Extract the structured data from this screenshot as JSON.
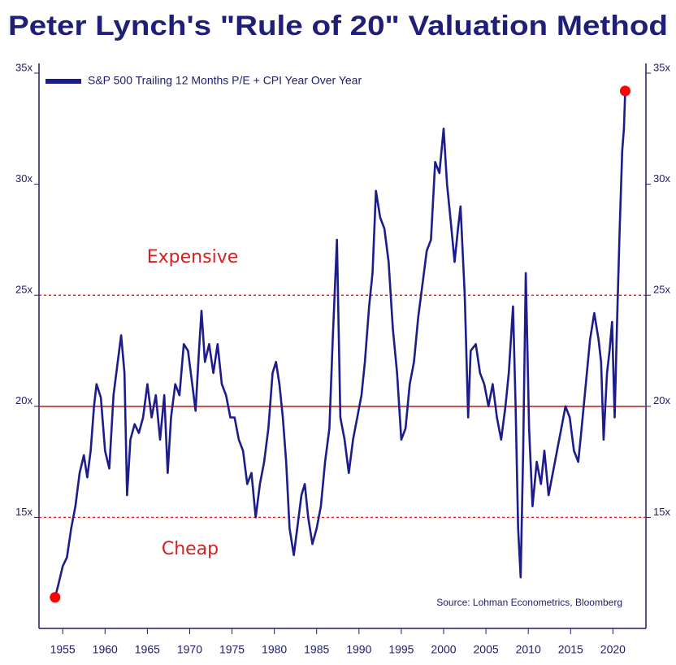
{
  "chart_data": {
    "type": "line",
    "title": "Peter Lynch's \"Rule of 20\" Valuation Method",
    "source": "Source: Lohman Econometrics, Bloomberg",
    "annotations": [
      "Expensive",
      "Cheap"
    ],
    "x": [
      1954.1,
      1954.5,
      1955,
      1955.5,
      1956,
      1956.5,
      1957,
      1957.5,
      1957.9,
      1958.3,
      1958.7,
      1959,
      1959.5,
      1960,
      1960.5,
      1961,
      1961.5,
      1961.9,
      1962.3,
      1962.6,
      1963,
      1963.5,
      1964,
      1964.5,
      1965,
      1965.5,
      1966,
      1966.5,
      1967,
      1967.4,
      1967.8,
      1968.3,
      1968.8,
      1969.3,
      1969.8,
      1970.3,
      1970.7,
      1971.1,
      1971.4,
      1971.8,
      1972.3,
      1972.8,
      1973.3,
      1973.8,
      1974.3,
      1974.8,
      1975.3,
      1975.8,
      1976.3,
      1976.8,
      1977.3,
      1977.8,
      1978.3,
      1978.8,
      1979.3,
      1979.8,
      1980.2,
      1980.6,
      1981,
      1981.4,
      1981.8,
      1982.3,
      1982.7,
      1983.2,
      1983.6,
      1984,
      1984.5,
      1985,
      1985.5,
      1986,
      1986.5,
      1986.9,
      1987.4,
      1987.8,
      1988.3,
      1988.8,
      1989.3,
      1989.8,
      1990.3,
      1990.7,
      1991.2,
      1991.6,
      1992,
      1992.5,
      1993,
      1993.5,
      1994,
      1994.5,
      1995,
      1995.5,
      1996,
      1996.5,
      1997,
      1997.5,
      1998,
      1998.5,
      1999,
      1999.5,
      2000,
      2000.4,
      2000.8,
      2001.3,
      2001.7,
      2002,
      2002.5,
      2002.9,
      2003.2,
      2003.8,
      2004.3,
      2004.8,
      2005.3,
      2005.8,
      2006.3,
      2006.8,
      2007.3,
      2007.7,
      2008.2,
      2008.5,
      2008.8,
      2009.1,
      2009.4,
      2009.7,
      2010.1,
      2010.5,
      2011,
      2011.5,
      2011.9,
      2012.4,
      2012.9,
      2013.4,
      2013.9,
      2014.4,
      2014.9,
      2015.4,
      2015.9,
      2016.3,
      2016.8,
      2017.3,
      2017.8,
      2018.3,
      2018.6,
      2018.9,
      2019.3,
      2019.6,
      2019.9,
      2020.2,
      2020.5,
      2020.8,
      2021.1,
      2021.3,
      2021.45
    ],
    "series": [
      {
        "name": "S&P 500 Trailing 12 Months P/E + CPI Year Over Year",
        "color": "#1c1c8a",
        "values": [
          11.4,
          12.0,
          12.8,
          13.2,
          14.5,
          15.5,
          17.0,
          17.8,
          16.8,
          18.0,
          20.0,
          21.0,
          20.4,
          18.0,
          17.2,
          20.5,
          22.0,
          23.2,
          21.5,
          16.0,
          18.5,
          19.2,
          18.8,
          19.5,
          21.0,
          19.5,
          20.5,
          18.5,
          20.5,
          17.0,
          19.5,
          21.0,
          20.5,
          22.8,
          22.5,
          21.0,
          19.8,
          22.5,
          24.3,
          22.0,
          22.8,
          21.5,
          22.8,
          21.0,
          20.5,
          19.5,
          19.5,
          18.5,
          18.0,
          16.5,
          17.0,
          15.0,
          16.5,
          17.5,
          19.0,
          21.5,
          22.0,
          21.0,
          19.5,
          17.5,
          14.5,
          13.3,
          14.5,
          16.0,
          16.5,
          15.0,
          13.8,
          14.5,
          15.5,
          17.5,
          19.0,
          23.0,
          27.5,
          19.5,
          18.5,
          17.0,
          18.5,
          19.5,
          20.5,
          22.0,
          24.5,
          26.0,
          29.7,
          28.5,
          28.0,
          26.5,
          23.5,
          21.5,
          18.5,
          19.0,
          21.0,
          22.0,
          24.0,
          25.5,
          27.0,
          27.5,
          31.0,
          30.5,
          32.5,
          30.0,
          28.5,
          26.5,
          28.0,
          29.0,
          25.0,
          19.5,
          22.5,
          22.8,
          21.5,
          21.0,
          20.0,
          21.0,
          19.5,
          18.5,
          20.0,
          21.5,
          24.5,
          20.0,
          14.5,
          12.3,
          18.0,
          26.0,
          19.0,
          15.5,
          17.5,
          16.5,
          18.0,
          16.0,
          17.0,
          18.0,
          19.0,
          20.0,
          19.5,
          18.0,
          17.5,
          19.0,
          21.0,
          23.0,
          24.2,
          23.0,
          22.0,
          18.5,
          21.5,
          22.5,
          23.8,
          19.5,
          24.0,
          28.0,
          31.5,
          32.5,
          34.2
        ]
      }
    ],
    "endpoint_markers": true,
    "marker_color": "#ff0000",
    "xlim": [
      1952.2,
      2023.9
    ],
    "xticks": [
      1955,
      1960,
      1965,
      1970,
      1975,
      1980,
      1985,
      1990,
      1995,
      2000,
      2005,
      2010,
      2015,
      2020
    ],
    "ylim": [
      10,
      35
    ],
    "yticks": [
      {
        "value": 15,
        "label": "15x"
      },
      {
        "value": 20,
        "label": "20x"
      },
      {
        "value": 25,
        "label": "25x"
      },
      {
        "value": 30,
        "label": "30x"
      },
      {
        "value": 35,
        "label": "35x"
      }
    ],
    "y2lim": [
      10,
      35
    ],
    "y2ticks": [
      {
        "value": 15,
        "label": "15x"
      },
      {
        "value": 20,
        "label": "20x"
      },
      {
        "value": 25,
        "label": "25x"
      },
      {
        "value": 30,
        "label": "30x"
      },
      {
        "value": 35,
        "label": "35x"
      }
    ],
    "reference_lines": [
      {
        "value": 25,
        "style": "dotted",
        "color": "#d02020"
      },
      {
        "value": 20,
        "style": "solid",
        "color": "#d02020"
      },
      {
        "value": 15,
        "style": "dotted",
        "color": "#d02020"
      }
    ],
    "legend": "top-left"
  }
}
